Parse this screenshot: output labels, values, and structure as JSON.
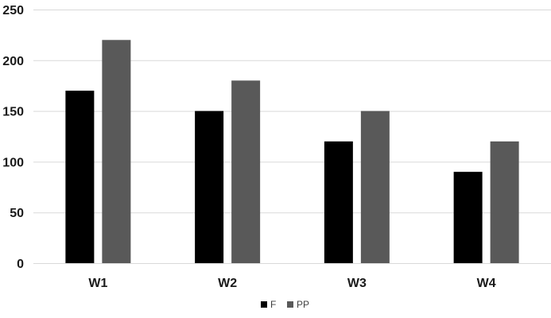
{
  "chart_data": {
    "type": "bar",
    "categories": [
      "W1",
      "W2",
      "W3",
      "W4"
    ],
    "series": [
      {
        "name": "F",
        "values": [
          170,
          150,
          120,
          90
        ],
        "color": "#000000"
      },
      {
        "name": "PP",
        "values": [
          220,
          180,
          150,
          120
        ],
        "color": "#595959"
      }
    ],
    "ylim": [
      0,
      250
    ],
    "yticks": [
      0,
      50,
      100,
      150,
      200,
      250
    ],
    "grid": true,
    "legend_position": "bottom"
  }
}
